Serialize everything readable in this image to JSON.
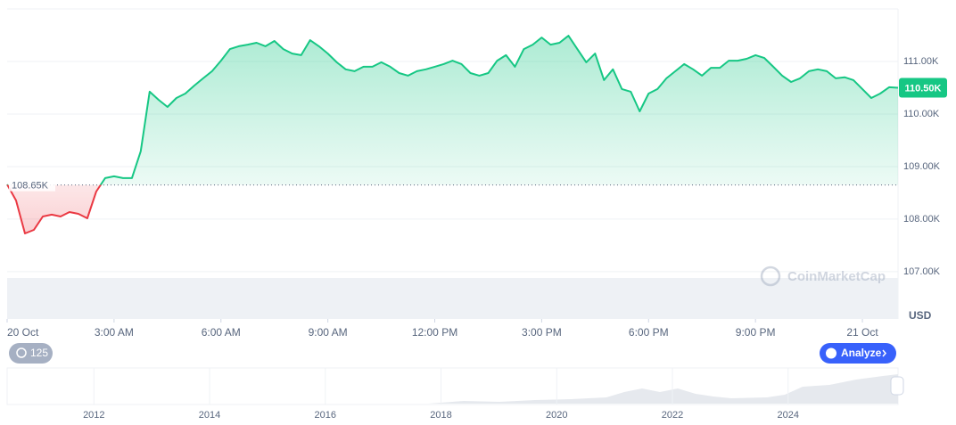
{
  "chart_data": {
    "type": "line",
    "x": [
      0,
      0.25,
      0.5,
      0.75,
      1,
      1.25,
      1.5,
      1.75,
      2,
      2.25,
      2.5,
      2.75,
      3,
      3.25,
      3.5,
      3.75,
      4,
      4.25,
      4.5,
      4.75,
      5,
      5.25,
      5.5,
      5.75,
      6,
      6.25,
      6.5,
      6.75,
      7,
      7.25,
      7.5,
      7.75,
      8,
      8.25,
      8.5,
      8.75,
      9,
      9.25,
      9.5,
      9.75,
      10,
      10.25,
      10.5,
      10.75,
      11,
      11.25,
      11.5,
      11.75,
      12,
      12.25,
      12.5,
      12.75,
      13,
      13.25,
      13.5,
      13.75,
      14,
      14.25,
      14.5,
      14.75,
      15,
      15.25,
      15.5,
      15.75,
      16,
      16.25,
      16.5,
      16.75,
      17,
      17.25,
      17.5,
      17.75,
      18,
      18.25,
      18.5,
      18.75,
      19,
      19.25,
      19.5,
      19.75,
      20,
      20.25,
      20.5,
      20.75,
      21,
      21.25,
      21.5,
      21.75,
      22,
      22.25,
      22.5,
      22.75,
      23,
      23.25,
      23.5,
      23.75,
      24,
      24.25,
      24.5,
      24.75,
      25
    ],
    "values": [
      108660,
      108355,
      107727,
      107795,
      108050,
      108085,
      108050,
      108135,
      108100,
      108015,
      108525,
      108780,
      108815,
      108780,
      108780,
      109290,
      110425,
      110270,
      110135,
      110305,
      110390,
      110540,
      110680,
      110815,
      111015,
      111235,
      111290,
      111320,
      111355,
      111290,
      111390,
      111235,
      111150,
      111120,
      111405,
      111290,
      111150,
      110985,
      110850,
      110815,
      110900,
      110900,
      110985,
      110900,
      110780,
      110730,
      110815,
      110850,
      110900,
      110950,
      111015,
      110950,
      110780,
      110730,
      110780,
      111015,
      111120,
      110900,
      111235,
      111320,
      111455,
      111320,
      111355,
      111490,
      111235,
      110985,
      111150,
      110645,
      110850,
      110475,
      110425,
      110050,
      110390,
      110475,
      110680,
      110815,
      110950,
      110850,
      110730,
      110880,
      110880,
      111015,
      111015,
      111050,
      111120,
      111065,
      110900,
      110730,
      110610,
      110680,
      110815,
      110850,
      110815,
      110680,
      110700,
      110645,
      110475,
      110305,
      110390,
      110510,
      110500
    ],
    "color": "#16c784",
    "down_color": "#ea3943",
    "reference": {
      "value": 108650,
      "label": "108.65K"
    },
    "last_price": {
      "value": 110500,
      "label": "110.50K"
    },
    "ylim": [
      106100,
      112000
    ],
    "yticks": [
      {
        "value": 107000,
        "label": "107.00K"
      },
      {
        "value": 108000,
        "label": "108.00K"
      },
      {
        "value": 109000,
        "label": "109.00K"
      },
      {
        "value": 110000,
        "label": "110.00K"
      },
      {
        "value": 111000,
        "label": "111.00K"
      }
    ],
    "y_unit": "USD",
    "xlim": [
      0,
      25
    ],
    "xticks": [
      {
        "value": 0,
        "label": "20 Oct"
      },
      {
        "value": 3,
        "label": "3:00 AM"
      },
      {
        "value": 6,
        "label": "6:00 AM"
      },
      {
        "value": 9,
        "label": "9:00 AM"
      },
      {
        "value": 12,
        "label": "12:00 PM"
      },
      {
        "value": 15,
        "label": "3:00 PM"
      },
      {
        "value": 18,
        "label": "6:00 PM"
      },
      {
        "value": 21,
        "label": "9:00 PM"
      },
      {
        "value": 24,
        "label": "21 Oct"
      }
    ],
    "grid": true
  },
  "navigator": {
    "xlim": [
      2010.5,
      2025.9
    ],
    "xticks": [
      2012,
      2014,
      2016,
      2018,
      2020,
      2022,
      2024
    ]
  },
  "watermark": "CoinMarketCap",
  "history_badge": "125",
  "analyze_button": "Analyze"
}
